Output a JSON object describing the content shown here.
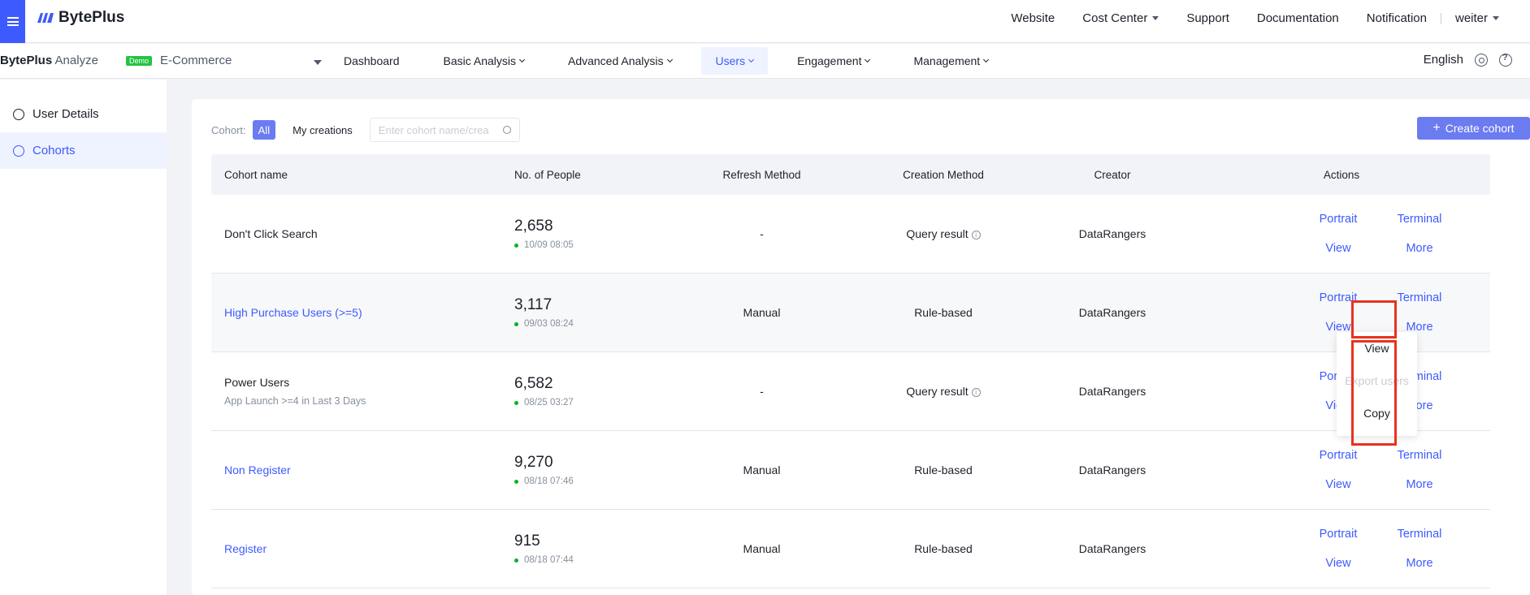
{
  "topbar": {
    "brand": "BytePlus",
    "nav": [
      "Website",
      "Cost Center",
      "Support",
      "Documentation",
      "Notification"
    ],
    "user": "weiter"
  },
  "subbar": {
    "product_bold": "BytePlus",
    "product_light": "Analyze",
    "demo_badge": "Demo",
    "project": "E-Commerce",
    "modules": [
      "Dashboard",
      "Basic Analysis",
      "Advanced Analysis",
      "Users",
      "Engagement",
      "Management"
    ],
    "active_module": "Users",
    "language": "English"
  },
  "sidebar": {
    "items": [
      {
        "label": "User Details",
        "icon": "user-search-icon"
      },
      {
        "label": "Cohorts",
        "icon": "users-icon"
      }
    ],
    "active": "Cohorts"
  },
  "filters": {
    "label": "Cohort:",
    "all": "All",
    "mine": "My creations",
    "search_placeholder": "Enter cohort name/crea"
  },
  "create_button": "Create cohort",
  "table": {
    "headers": [
      "Cohort name",
      "No. of People",
      "Refresh Method",
      "Creation Method",
      "Creator",
      "Actions"
    ],
    "rows": [
      {
        "name": "Don't Click Search",
        "sub": "",
        "link": false,
        "count": "2,658",
        "time": "10/09 08:05",
        "refresh": "-",
        "creation": "Query result",
        "info": true,
        "creator": "DataRangers"
      },
      {
        "name": "High Purchase Users (>=5)",
        "sub": "",
        "link": true,
        "count": "3,117",
        "time": "09/03 08:24",
        "refresh": "Manual",
        "creation": "Rule-based",
        "info": false,
        "creator": "DataRangers"
      },
      {
        "name": "Power Users",
        "sub": "App Launch >=4 in Last 3 Days",
        "link": false,
        "count": "6,582",
        "time": "08/25 03:27",
        "refresh": "-",
        "creation": "Query result",
        "info": true,
        "creator": "DataRangers"
      },
      {
        "name": "Non Register",
        "sub": "",
        "link": true,
        "count": "9,270",
        "time": "08/18 07:46",
        "refresh": "Manual",
        "creation": "Rule-based",
        "info": false,
        "creator": "DataRangers"
      },
      {
        "name": "Register",
        "sub": "",
        "link": true,
        "count": "915",
        "time": "08/18 07:44",
        "refresh": "Manual",
        "creation": "Rule-based",
        "info": false,
        "creator": "DataRangers"
      }
    ],
    "actions": {
      "portrait": "Portrait",
      "terminal": "Terminal",
      "view": "View",
      "more": "More"
    }
  },
  "dropdown": {
    "items": [
      {
        "label": "View",
        "disabled": false
      },
      {
        "label": "Export users",
        "disabled": true
      },
      {
        "label": "Copy",
        "disabled": false
      }
    ]
  },
  "colors": {
    "accent": "#3d5afe",
    "button": "#6b7bf0",
    "highlight_box": "#e8321f"
  }
}
